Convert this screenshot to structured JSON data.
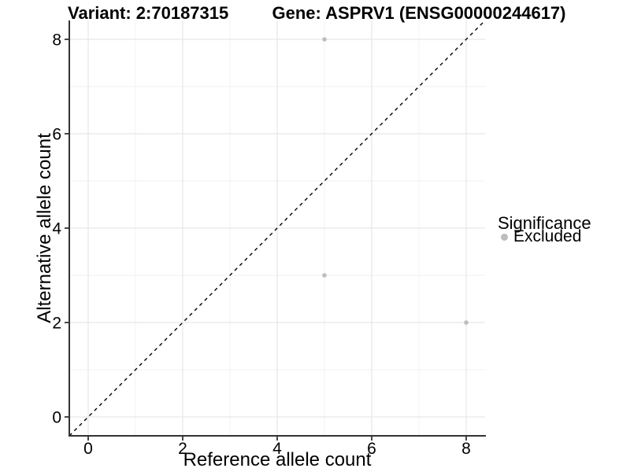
{
  "chart_data": {
    "type": "scatter",
    "title_left": "Variant: 2:70187315",
    "title_right": "Gene: ASPRV1 (ENSG00000244617)",
    "xlabel": "Reference allele count",
    "ylabel": "Alternative allele count",
    "xlim": [
      -0.4,
      8.4
    ],
    "ylim": [
      -0.4,
      8.4
    ],
    "x_ticks": [
      0,
      2,
      4,
      6,
      8
    ],
    "y_ticks": [
      0,
      2,
      4,
      6,
      8
    ],
    "x_minor_ticks": [
      1,
      3,
      5,
      7
    ],
    "y_minor_ticks": [
      1,
      3,
      5,
      7
    ],
    "grid": "on",
    "series": [
      {
        "name": "Excluded",
        "color": "#bdbdbd",
        "points": [
          [
            5,
            8
          ],
          [
            5,
            3
          ],
          [
            8,
            2
          ]
        ]
      }
    ],
    "reference_line": {
      "type": "identity y=x",
      "style": "dashed",
      "color": "#000000"
    },
    "legend": {
      "title": "Significance",
      "position": "right",
      "entries": [
        {
          "label": "Excluded",
          "color": "#bdbdbd"
        }
      ]
    },
    "colors": {
      "point_gray": "#bdbdbd",
      "axis_line": "#333333",
      "grid_major": "#e7e7e7",
      "grid_minor": "#f2f2f2",
      "background": "#ffffff"
    }
  }
}
